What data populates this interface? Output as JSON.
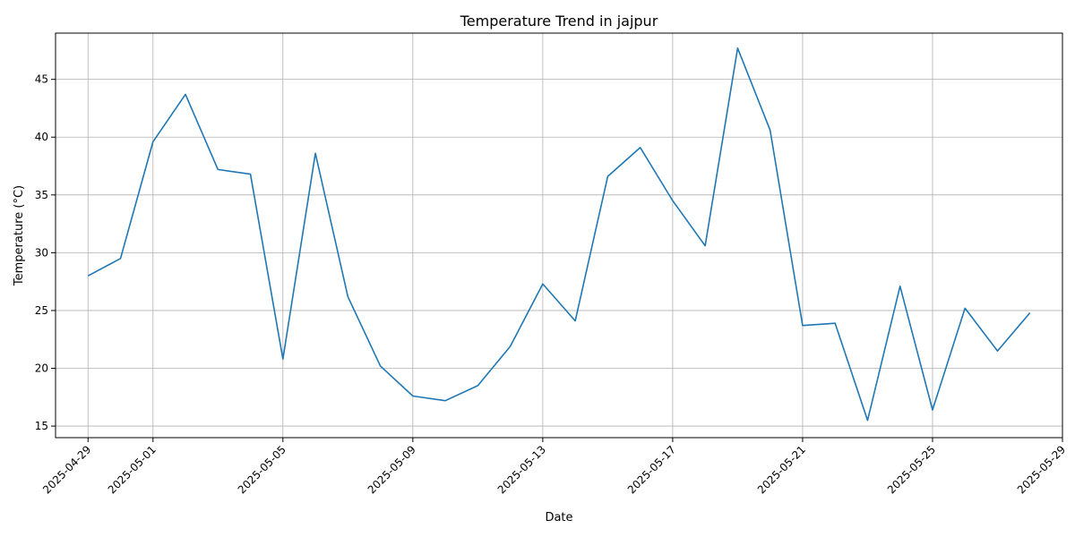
{
  "chart_data": {
    "type": "line",
    "title": "Temperature Trend in jajpur",
    "xlabel": "Date",
    "ylabel": "Temperature (°C)",
    "x_ticks": [
      "2025-04-29",
      "2025-05-01",
      "2025-05-05",
      "2025-05-09",
      "2025-05-13",
      "2025-05-17",
      "2025-05-21",
      "2025-05-25",
      "2025-05-29"
    ],
    "y_ticks": [
      15,
      20,
      25,
      30,
      35,
      40,
      45
    ],
    "xlim": [
      "2025-04-28",
      "2025-05-29"
    ],
    "ylim": [
      14,
      49
    ],
    "grid": true,
    "series": [
      {
        "color": "#1f77b4",
        "x": [
          "2025-04-29",
          "2025-04-30",
          "2025-05-01",
          "2025-05-02",
          "2025-05-03",
          "2025-05-04",
          "2025-05-05",
          "2025-05-06",
          "2025-05-07",
          "2025-05-08",
          "2025-05-09",
          "2025-05-10",
          "2025-05-11",
          "2025-05-12",
          "2025-05-13",
          "2025-05-14",
          "2025-05-15",
          "2025-05-16",
          "2025-05-17",
          "2025-05-18",
          "2025-05-19",
          "2025-05-20",
          "2025-05-21",
          "2025-05-22",
          "2025-05-23",
          "2025-05-24",
          "2025-05-25",
          "2025-05-26",
          "2025-05-27",
          "2025-05-28"
        ],
        "values": [
          28.0,
          29.5,
          39.6,
          43.7,
          37.2,
          36.8,
          20.8,
          38.6,
          26.2,
          20.2,
          17.6,
          17.2,
          18.5,
          21.9,
          27.3,
          24.1,
          36.6,
          39.1,
          34.5,
          30.6,
          47.7,
          40.6,
          23.7,
          23.9,
          15.5,
          27.1,
          16.4,
          25.2,
          21.5,
          24.8
        ]
      }
    ]
  }
}
